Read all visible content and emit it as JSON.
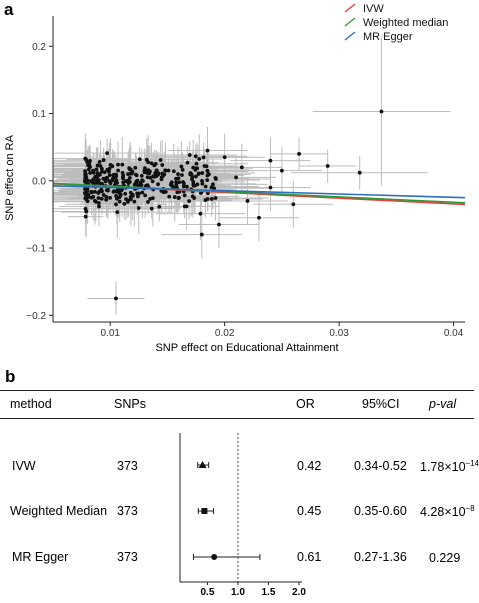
{
  "panel_a_label": "a",
  "panel_b_label": "b",
  "chart_data": [
    {
      "type": "scatter",
      "title": "",
      "xlabel": "SNP effect on Educational Attainment",
      "ylabel": "SNP effect on RA",
      "xlim": [
        0.005,
        0.041
      ],
      "ylim": [
        -0.21,
        0.245
      ],
      "xticks": [
        "0.01",
        "0.02",
        "0.03",
        "0.04"
      ],
      "xtick_values": [
        0.01,
        0.02,
        0.03,
        0.04
      ],
      "yticks": [
        "0.2",
        "0.1",
        "0.0",
        "−0.1",
        "−0.2"
      ],
      "ytick_values": [
        0.2,
        0.1,
        0.0,
        -0.1,
        -0.2
      ],
      "grid": false,
      "legend_position": "top-right",
      "lines": [
        {
          "name": "IVW",
          "color": "#e8403a",
          "slope": -0.86,
          "intercept": 0.0
        },
        {
          "name": "Weighted median",
          "color": "#2e9a3c",
          "slope": -0.8,
          "intercept": 0.0
        },
        {
          "name": "MR Egger",
          "color": "#2f6fbf",
          "slope": -0.49,
          "intercept": -0.005
        }
      ],
      "points_note": "373 SNPs with horizontal and vertical error bars; dense cluster x 0.008-0.018",
      "highlighted_points": [
        {
          "x": 0.0105,
          "y": -0.175
        },
        {
          "x": 0.0337,
          "y": 0.103
        },
        {
          "x": 0.0318,
          "y": 0.012
        },
        {
          "x": 0.029,
          "y": 0.022
        },
        {
          "x": 0.0265,
          "y": 0.04
        }
      ]
    },
    {
      "type": "forest",
      "title": "",
      "columns": [
        "method",
        "SNPs",
        "OR",
        "95%CI",
        "p-val"
      ],
      "rows": [
        {
          "method": "IVW",
          "snps": "373",
          "or": 0.42,
          "or_text": "0.42",
          "ci_low": 0.34,
          "ci_high": 0.52,
          "ci_text": "0.34-0.52",
          "p_mant": "1.78×10",
          "p_exp": "−14"
        },
        {
          "method": "Weighted Median",
          "snps": "373",
          "or": 0.45,
          "or_text": "0.45",
          "ci_low": 0.35,
          "ci_high": 0.6,
          "ci_text": "0.35-0.60",
          "p_mant": "4.28×10",
          "p_exp": "−8"
        },
        {
          "method": "MR Egger",
          "snps": "373",
          "or": 0.61,
          "or_text": "0.61",
          "ci_low": 0.27,
          "ci_high": 1.36,
          "ci_text": "0.27-1.36",
          "p_mant": "0.229",
          "p_exp": ""
        }
      ],
      "xlim": [
        0.05,
        2.05
      ],
      "xticks": [
        "0.5",
        "1.0",
        "1.5",
        "2.0"
      ],
      "xtick_values": [
        0.5,
        1.0,
        1.5,
        2.0
      ],
      "reference_line": 1.0
    }
  ]
}
